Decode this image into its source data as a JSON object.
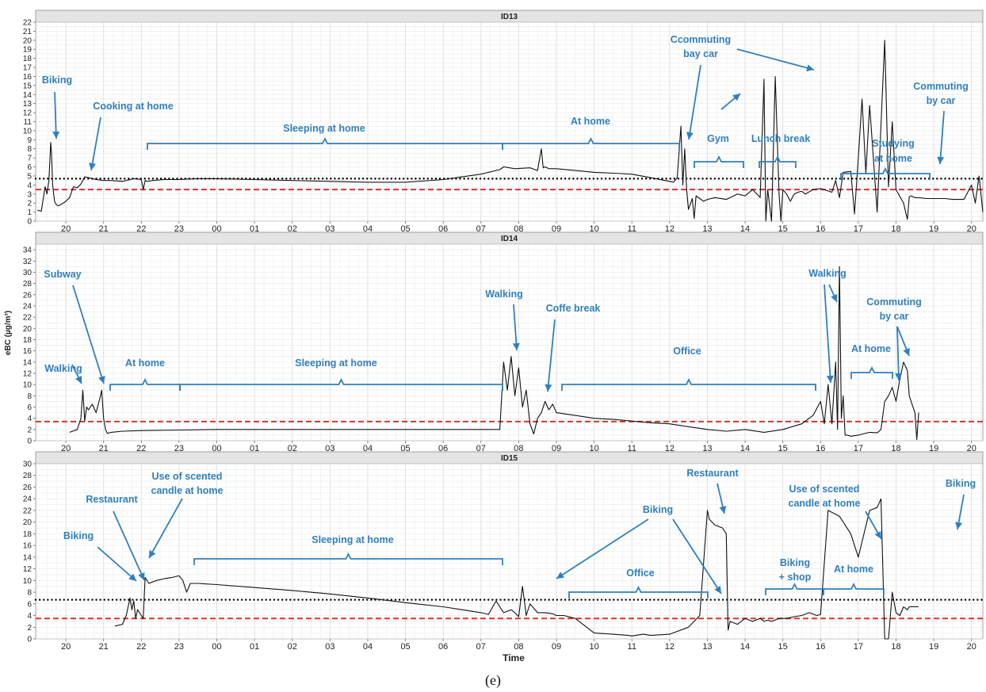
{
  "figure": {
    "caption_text": "(e)"
  },
  "chart_data": [
    {
      "type": "line",
      "title": "ID13",
      "xlabel": "Time",
      "ylabel": "eBC (µg/m³)",
      "ylim": [
        0,
        22
      ],
      "yticks": [
        0,
        1,
        2,
        3,
        4,
        5,
        6,
        7,
        8,
        9,
        10,
        11,
        12,
        13,
        14,
        15,
        16,
        17,
        18,
        19,
        20,
        21,
        22
      ],
      "xlim": [
        19.2,
        44.3
      ],
      "grid": true,
      "reference_lines": [
        {
          "y": 4.7,
          "style": "dotted",
          "color": "#000000"
        },
        {
          "y": 3.5,
          "style": "dashed",
          "color": "#e03030"
        }
      ],
      "series": [
        {
          "x": [
            19.25,
            19.35,
            19.45,
            19.5,
            19.55,
            19.6,
            19.62,
            19.65,
            19.7,
            19.75,
            19.8,
            19.9,
            20.0,
            20.1,
            20.2,
            20.3,
            20.4,
            20.5,
            20.6,
            20.8,
            21.0,
            21.2,
            21.5,
            21.8,
            22.0,
            22.05,
            22.1,
            22.15,
            22.3,
            22.6,
            23.0,
            23.5,
            24.0,
            25.0,
            26.0,
            27.0,
            28.0,
            29.0,
            30.0,
            30.5,
            31.0,
            31.4,
            31.5,
            31.6,
            31.9,
            32.3,
            32.5,
            32.6,
            32.65,
            32.7,
            32.8,
            33.0,
            33.5,
            34.0,
            34.5,
            35.0,
            35.5,
            36.0,
            36.1,
            36.2,
            36.3,
            36.35,
            36.4,
            36.45,
            36.5,
            36.6,
            36.65,
            36.7,
            36.8,
            36.9,
            37.0,
            37.2,
            37.5,
            37.8,
            38.0,
            38.2,
            38.4,
            38.5,
            38.55,
            38.6,
            38.7,
            38.8,
            38.9,
            38.95,
            39.0,
            39.1,
            39.2,
            39.3,
            39.4,
            39.5,
            39.6,
            39.8,
            40.0,
            40.3,
            40.4,
            40.5,
            40.6,
            40.8,
            40.9,
            41.0,
            41.1,
            41.2,
            41.3,
            41.5,
            41.7,
            41.8,
            41.9,
            42.0,
            42.2,
            42.3,
            42.35,
            42.4,
            42.5,
            42.6,
            42.8,
            43.0,
            43.3,
            43.5,
            43.8,
            44.0,
            44.1,
            44.2,
            44.3
          ],
          "values": [
            1.2,
            1.1,
            3.8,
            3.0,
            4.5,
            8.7,
            7.5,
            4.0,
            2.2,
            1.8,
            1.7,
            1.9,
            2.2,
            2.6,
            3.8,
            3.7,
            4.1,
            4.9,
            4.8,
            4.6,
            4.5,
            4.5,
            4.4,
            4.7,
            4.6,
            3.5,
            4.5,
            4.4,
            4.5,
            4.6,
            4.6,
            4.7,
            4.7,
            4.6,
            4.5,
            4.4,
            4.3,
            4.3,
            4.6,
            4.9,
            5.2,
            5.6,
            5.7,
            6.0,
            5.8,
            5.9,
            5.6,
            8.0,
            5.9,
            6.0,
            5.8,
            5.8,
            5.6,
            5.4,
            5.3,
            5.2,
            4.8,
            4.4,
            4.3,
            4.8,
            10.5,
            4.0,
            8.0,
            3.5,
            1.3,
            2.5,
            0.3,
            2.8,
            2.5,
            2.2,
            2.4,
            2.6,
            2.4,
            3.0,
            2.8,
            3.5,
            2.6,
            15.7,
            0.0,
            3.5,
            0.0,
            16.0,
            3.0,
            0.0,
            3.5,
            3.0,
            2.2,
            3.0,
            3.2,
            3.3,
            3.0,
            3.5,
            3.6,
            3.2,
            4.5,
            2.6,
            5.4,
            5.5,
            0.8,
            7.0,
            13.5,
            5.3,
            12.8,
            1.0,
            20.0,
            3.8,
            11.0,
            3.5,
            2.0,
            0.2,
            2.7,
            2.8,
            2.6,
            2.6,
            2.5,
            2.5,
            2.5,
            2.4,
            2.4,
            4.0,
            2.0,
            5.0,
            1.0
          ]
        }
      ],
      "annotations": [
        {
          "text": "Biking"
        },
        {
          "text": "Cooking at home"
        },
        {
          "text": "Sleeping at home"
        },
        {
          "text": "At home"
        },
        {
          "text": "Ccommuting"
        },
        {
          "text": "bay car"
        },
        {
          "text": "Gym"
        },
        {
          "text": "Lunch break"
        },
        {
          "text": "Studying"
        },
        {
          "text": "at home"
        },
        {
          "text": "Commuting"
        },
        {
          "text": "by car"
        }
      ]
    },
    {
      "type": "line",
      "title": "ID14",
      "xlabel": "Time",
      "ylabel": "eBC (µg/m³)",
      "ylim": [
        0,
        35
      ],
      "yticks": [
        0,
        2,
        4,
        6,
        8,
        10,
        12,
        14,
        16,
        18,
        20,
        22,
        24,
        26,
        28,
        30,
        32,
        34
      ],
      "xlim": [
        19.2,
        44.3
      ],
      "grid": true,
      "reference_lines": [
        {
          "y": 3.4,
          "style": "dashed",
          "color": "#e03030"
        }
      ],
      "series": [
        {
          "x": [
            20.1,
            20.3,
            20.4,
            20.45,
            20.5,
            20.55,
            20.6,
            20.7,
            20.8,
            20.9,
            20.95,
            21.0,
            21.05,
            21.1,
            21.2,
            21.5,
            22.0,
            23.0,
            24.0,
            25.0,
            26.0,
            27.0,
            28.0,
            29.0,
            30.0,
            31.0,
            31.5,
            31.6,
            31.7,
            31.8,
            31.9,
            32.0,
            32.1,
            32.2,
            32.3,
            32.4,
            32.5,
            32.6,
            32.7,
            32.8,
            32.9,
            33.0,
            33.5,
            34.0,
            34.5,
            35.0,
            35.5,
            36.0,
            36.5,
            37.0,
            37.5,
            38.0,
            38.5,
            39.0,
            39.5,
            39.8,
            40.0,
            40.1,
            40.2,
            40.3,
            40.4,
            40.45,
            40.5,
            40.55,
            40.6,
            40.65,
            40.7,
            40.8,
            41.0,
            41.3,
            41.5,
            41.6,
            41.7,
            41.8,
            41.9,
            42.0,
            42.1,
            42.2,
            42.3,
            42.35,
            42.4,
            42.5,
            42.55,
            42.6
          ],
          "values": [
            1.5,
            2.0,
            4.0,
            9.0,
            3.5,
            6.0,
            5.5,
            6.5,
            5.0,
            7.5,
            9.0,
            4.0,
            2.0,
            1.3,
            1.5,
            1.7,
            1.8,
            1.9,
            2.0,
            2.0,
            2.0,
            2.0,
            2.0,
            2.0,
            2.0,
            2.0,
            2.0,
            14.0,
            9.0,
            15.0,
            8.0,
            13.0,
            6.0,
            9.0,
            3.0,
            1.2,
            4.0,
            5.0,
            7.0,
            5.5,
            6.5,
            5.0,
            4.5,
            4.0,
            3.8,
            3.5,
            3.2,
            3.0,
            2.5,
            2.0,
            1.7,
            2.0,
            1.5,
            2.0,
            3.0,
            4.5,
            7.0,
            3.0,
            10.0,
            3.0,
            14.0,
            2.0,
            31.0,
            4.0,
            8.0,
            1.0,
            1.0,
            0.8,
            1.0,
            1.5,
            1.4,
            2.0,
            7.0,
            8.0,
            9.5,
            7.0,
            11.0,
            14.0,
            12.5,
            8.0,
            7.0,
            5.0,
            0.2,
            5.0
          ]
        }
      ],
      "annotations": [
        {
          "text": "Subway"
        },
        {
          "text": "Walking"
        },
        {
          "text": "At home"
        },
        {
          "text": "Sleeping at home"
        },
        {
          "text": "Walking"
        },
        {
          "text": "Coffe break"
        },
        {
          "text": "Office"
        },
        {
          "text": "Walking"
        },
        {
          "text": "Commuting"
        },
        {
          "text": "by car"
        },
        {
          "text": "At home"
        }
      ]
    },
    {
      "type": "line",
      "title": "ID15",
      "xlabel": "Time",
      "ylabel": "eBC (µg/m³)",
      "ylim": [
        0,
        30
      ],
      "yticks": [
        0,
        2,
        4,
        6,
        8,
        10,
        12,
        14,
        16,
        18,
        20,
        22,
        24,
        26,
        28,
        30
      ],
      "xlim": [
        19.2,
        44.3
      ],
      "grid": true,
      "reference_lines": [
        {
          "y": 6.7,
          "style": "dotted",
          "color": "#000000"
        },
        {
          "y": 3.5,
          "style": "dashed",
          "color": "#e03030"
        }
      ],
      "series": [
        {
          "x": [
            21.3,
            21.5,
            21.6,
            21.7,
            21.75,
            21.8,
            21.85,
            21.9,
            22.0,
            22.05,
            22.1,
            22.2,
            22.4,
            22.6,
            22.8,
            23.0,
            23.1,
            23.2,
            23.3,
            23.5,
            24.0,
            25.0,
            26.0,
            27.0,
            28.0,
            29.0,
            30.0,
            30.5,
            31.0,
            31.2,
            31.4,
            31.6,
            31.8,
            31.9,
            32.0,
            32.1,
            32.2,
            32.3,
            32.5,
            32.7,
            32.9,
            33.0,
            33.2,
            33.5,
            34.0,
            34.5,
            34.9,
            35.0,
            35.1,
            35.3,
            35.5,
            36.0,
            36.5,
            36.8,
            37.0,
            37.05,
            37.2,
            37.4,
            37.5,
            37.55,
            37.6,
            37.8,
            38.0,
            38.2,
            38.4,
            38.5,
            38.6,
            38.7,
            38.9,
            39.1,
            39.3,
            39.5,
            39.7,
            39.9,
            40.0,
            40.2,
            40.5,
            40.8,
            41.0,
            41.3,
            41.5,
            41.6,
            41.7,
            41.8,
            41.9,
            42.0,
            42.1,
            42.2,
            42.3,
            42.35,
            42.4,
            42.5,
            42.6
          ],
          "values": [
            2.2,
            2.5,
            4.0,
            7.0,
            5.0,
            6.5,
            3.5,
            5.0,
            4.0,
            3.5,
            10.5,
            9.5,
            10.0,
            10.3,
            10.5,
            10.8,
            10.0,
            8.0,
            9.5,
            9.5,
            9.3,
            8.8,
            8.3,
            7.7,
            7.0,
            6.2,
            5.5,
            5.0,
            4.5,
            4.2,
            6.5,
            4.5,
            5.0,
            4.5,
            3.8,
            9.0,
            4.0,
            6.0,
            4.5,
            4.5,
            4.3,
            4.0,
            4.0,
            3.5,
            1.0,
            0.8,
            0.6,
            0.5,
            0.6,
            0.8,
            0.6,
            0.8,
            2.0,
            4.0,
            22.0,
            20.5,
            19.5,
            19.0,
            18.0,
            1.5,
            3.0,
            2.5,
            3.5,
            3.0,
            3.5,
            3.0,
            3.2,
            3.0,
            3.5,
            3.5,
            3.8,
            4.0,
            4.5,
            4.0,
            4.2,
            22.0,
            21.0,
            18.0,
            14.0,
            22.0,
            22.5,
            24.0,
            0.0,
            0.0,
            8.0,
            4.5,
            4.0,
            5.5,
            5.0,
            5.5,
            5.5,
            5.5,
            5.5
          ]
        }
      ],
      "annotations": [
        {
          "text": "Use of scented"
        },
        {
          "text": "candle at home"
        },
        {
          "text": "Restaurant"
        },
        {
          "text": "Biking"
        },
        {
          "text": "Sleeping at home"
        },
        {
          "text": "Biking"
        },
        {
          "text": "Office"
        },
        {
          "text": "Restaurant"
        },
        {
          "text": "Biking"
        },
        {
          "text": "+ shop"
        },
        {
          "text": "At home"
        },
        {
          "text": "Use of scented"
        },
        {
          "text": "candle at home"
        },
        {
          "text": "Biking"
        }
      ]
    }
  ],
  "x_axis": {
    "title": "Time",
    "ticks": [
      {
        "t": 20,
        "label": "20"
      },
      {
        "t": 21,
        "label": "21"
      },
      {
        "t": 22,
        "label": "22"
      },
      {
        "t": 23,
        "label": "23"
      },
      {
        "t": 24,
        "label": "00"
      },
      {
        "t": 25,
        "label": "01"
      },
      {
        "t": 26,
        "label": "02"
      },
      {
        "t": 27,
        "label": "03"
      },
      {
        "t": 28,
        "label": "04"
      },
      {
        "t": 29,
        "label": "05"
      },
      {
        "t": 30,
        "label": "06"
      },
      {
        "t": 31,
        "label": "07"
      },
      {
        "t": 32,
        "label": "08"
      },
      {
        "t": 33,
        "label": "09"
      },
      {
        "t": 34,
        "label": "10"
      },
      {
        "t": 35,
        "label": "11"
      },
      {
        "t": 36,
        "label": "12"
      },
      {
        "t": 37,
        "label": "13"
      },
      {
        "t": 38,
        "label": "14"
      },
      {
        "t": 39,
        "label": "15"
      },
      {
        "t": 40,
        "label": "16"
      },
      {
        "t": 41,
        "label": "17"
      },
      {
        "t": 42,
        "label": "18"
      },
      {
        "t": 43,
        "label": "19"
      },
      {
        "t": 44,
        "label": "20"
      }
    ]
  },
  "colors": {
    "line": "#111111",
    "annotation": "#2f7fbf",
    "strip": "#e4e4e4",
    "grid": "#e6e6e6"
  }
}
